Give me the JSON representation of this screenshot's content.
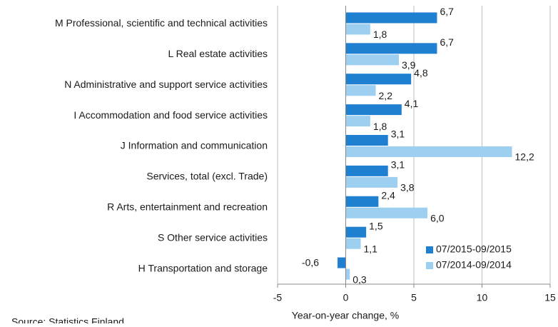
{
  "chart_data": {
    "type": "bar",
    "orientation": "horizontal",
    "categories": [
      "M Professional, scientific and technical activities",
      "L Real estate activities",
      "N Administrative and support service activities",
      "I Accommodation and food service activities",
      "J Information and communication",
      "Services, total (excl. Trade)",
      "R Arts, entertainment and recreation",
      "S Other service activities",
      "H Transportation and storage"
    ],
    "series": [
      {
        "name": "07/2015-09/2015",
        "color": "#1f7fd0",
        "values": [
          6.7,
          6.7,
          4.8,
          4.1,
          3.1,
          3.1,
          2.4,
          1.5,
          -0.6
        ],
        "value_labels": [
          "6,7",
          "6,7",
          "4,8",
          "4,1",
          "3,1",
          "3,1",
          "2,4",
          "1,5",
          "-0,6"
        ]
      },
      {
        "name": "07/2014-09/2014",
        "color": "#9dd0f0",
        "values": [
          1.8,
          3.9,
          2.2,
          1.8,
          12.2,
          3.8,
          6.0,
          1.1,
          0.3
        ],
        "value_labels": [
          "1,8",
          "3,9",
          "2,2",
          "1,8",
          "12,2",
          "3,8",
          "6,0",
          "1,1",
          "0,3"
        ]
      }
    ],
    "xlim": [
      -5,
      15
    ],
    "xticks": [
      -5,
      0,
      5,
      10,
      15
    ],
    "grid": true,
    "legend": "lower right",
    "xlabel": "Year-on-year change, %",
    "source": "Source: Statistics Finland"
  }
}
